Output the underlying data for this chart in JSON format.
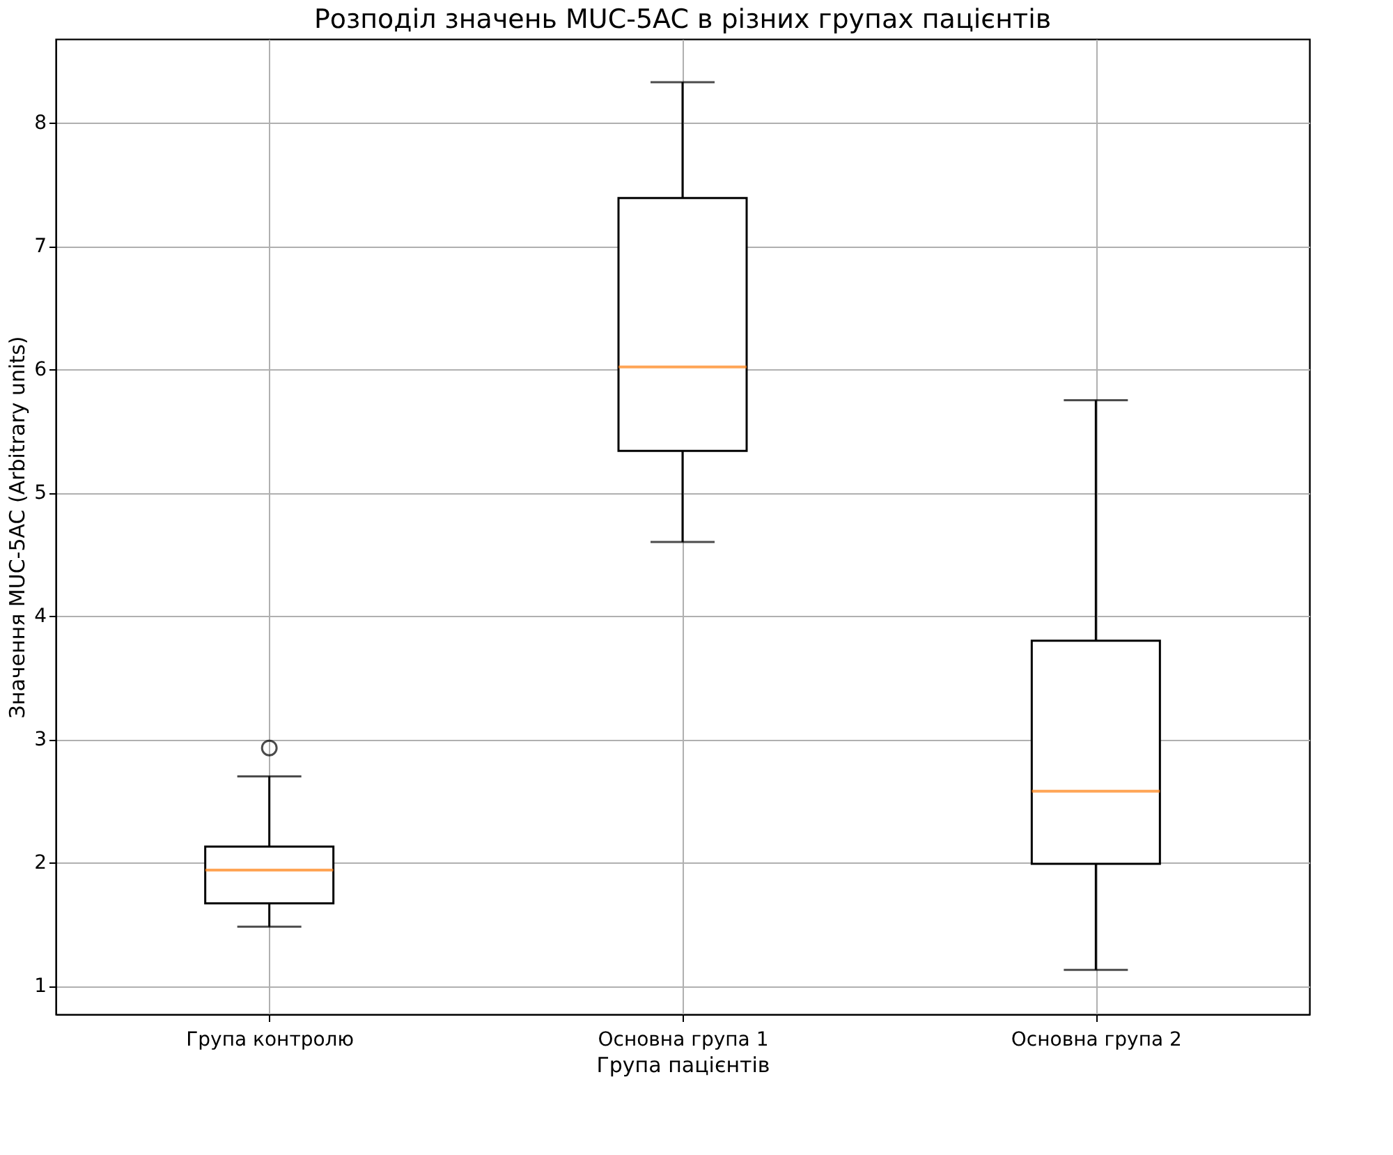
{
  "chart_data": {
    "type": "box",
    "title": "Розподіл значень MUC-5AC в різних групах пацієнтів",
    "xlabel": "Група пацієнтів",
    "ylabel": "Значення MUC-5AC (Arbitrary units)",
    "categories": [
      "Група контролю",
      "Основна група 1",
      "Основна група 2"
    ],
    "series": [
      {
        "color": "#000000",
        "boxes": [
          {
            "low": 1.48,
            "q1": 1.67,
            "median": 1.94,
            "q3": 2.13,
            "high": 2.7,
            "outliers": [
              2.93
            ]
          },
          {
            "low": 4.6,
            "q1": 5.34,
            "median": 6.02,
            "q3": 7.39,
            "high": 8.33
          },
          {
            "low": 1.13,
            "q1": 1.99,
            "median": 2.58,
            "q3": 3.8,
            "high": 5.75
          }
        ]
      }
    ],
    "ylim": [
      0.77,
      8.68
    ],
    "yticks": [
      1,
      2,
      3,
      4,
      5,
      6,
      7,
      8
    ],
    "grid": true
  }
}
